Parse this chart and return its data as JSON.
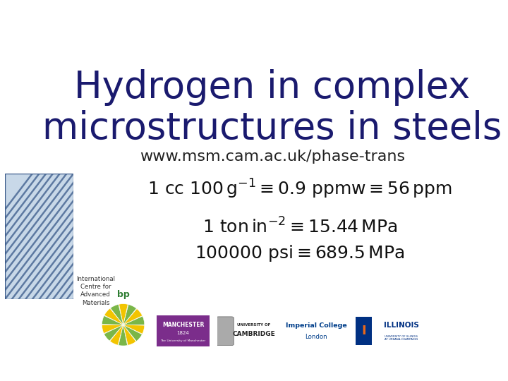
{
  "title_line1": "Hydrogen in complex",
  "title_line2": "microstructures in steels",
  "title_color": "#1a1a6e",
  "title_fontsize": 38,
  "subtitle": "www.msm.cam.ac.uk/phase-trans",
  "subtitle_color": "#222222",
  "subtitle_fontsize": 16,
  "eq_color": "#111111",
  "eq1_fontsize": 18,
  "eq23_fontsize": 18,
  "bg_color": "#ffffff",
  "icam_color1": "#c8d8e8",
  "icam_color2": "#3a5a8a",
  "bp_green": "#7ab648",
  "bp_yellow": "#f2c400",
  "bp_text_color": "#2e7d32",
  "man_color": "#7B2D8B",
  "imp_color": "#003e8a",
  "ill_blue": "#003082",
  "ill_orange": "#e8681a"
}
